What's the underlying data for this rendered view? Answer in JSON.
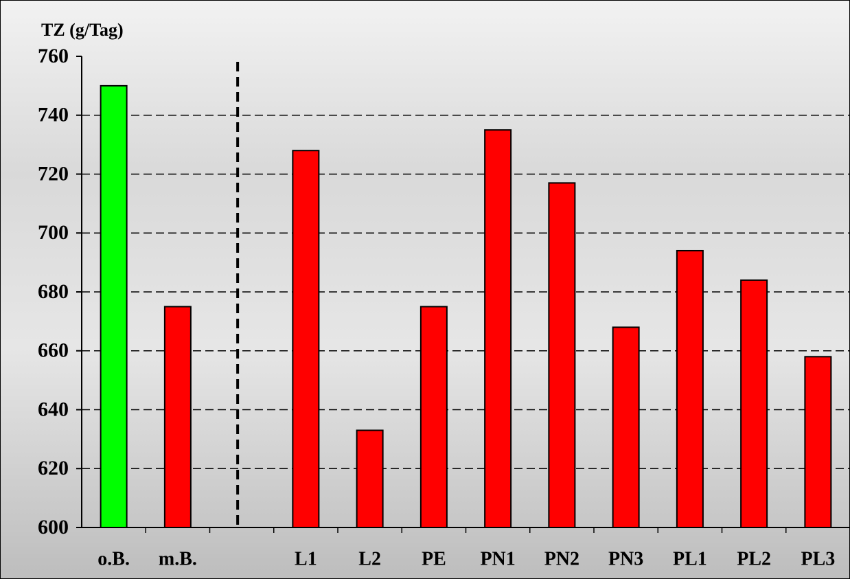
{
  "chart_data": {
    "type": "bar",
    "title": "TZ (g/Tag)",
    "categories": [
      "o.B.",
      "m.B.",
      null,
      "L1",
      "L2",
      "PE",
      "PN1",
      "PN2",
      "PN3",
      "PL1",
      "PL2",
      "PL3"
    ],
    "values": [
      750,
      675,
      null,
      728,
      633,
      675,
      735,
      717,
      668,
      694,
      684,
      658
    ],
    "colors": [
      "#00ff00",
      "#ff0000",
      null,
      "#ff0000",
      "#ff0000",
      "#ff0000",
      "#ff0000",
      "#ff0000",
      "#ff0000",
      "#ff0000",
      "#ff0000",
      "#ff0000"
    ],
    "ylim": [
      600,
      760
    ],
    "yticks": [
      600,
      620,
      640,
      660,
      680,
      700,
      720,
      740,
      760
    ],
    "grid": true
  }
}
